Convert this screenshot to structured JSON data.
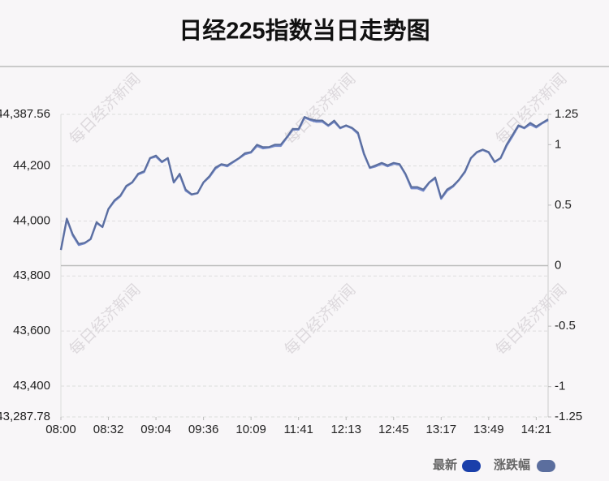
{
  "chart_data": {
    "type": "line",
    "title": "日经225指数当日走势图",
    "watermark": "每日经济新闻",
    "categories": [
      "08:00",
      null,
      null,
      null,
      null,
      null,
      null,
      null,
      "08:32",
      null,
      null,
      null,
      null,
      null,
      null,
      null,
      "09:04",
      null,
      null,
      null,
      null,
      null,
      null,
      null,
      "09:36",
      null,
      null,
      null,
      null,
      null,
      null,
      null,
      "10:09",
      null,
      null,
      null,
      null,
      null,
      null,
      null,
      "11:41",
      null,
      null,
      null,
      null,
      null,
      null,
      null,
      "12:13",
      null,
      null,
      null,
      null,
      null,
      null,
      null,
      "12:45",
      null,
      null,
      null,
      null,
      null,
      null,
      null,
      "13:17",
      null,
      null,
      null,
      null,
      null,
      null,
      null,
      "13:49",
      null,
      null,
      null,
      null,
      null,
      null,
      null,
      "14:21",
      null,
      null
    ],
    "series": [
      {
        "name": "最新",
        "color": "#1a3faa",
        "values": [
          43895,
          44007,
          43948,
          43913,
          43919,
          43934,
          43993,
          43978,
          44043,
          44072,
          44090,
          44125,
          44140,
          44169,
          44178,
          44228,
          44234,
          44214,
          44228,
          44140,
          44169,
          44110,
          44096,
          44101,
          44140,
          44160,
          44190,
          44205,
          44199,
          44214,
          44228,
          44243,
          44249,
          44273,
          44264,
          44267,
          44273,
          44273,
          44302,
          44332,
          44332,
          44376,
          44367,
          44361,
          44361,
          44346,
          44361,
          44337,
          44346,
          44337,
          44317,
          44243,
          44193,
          44199,
          44208,
          44199,
          44208,
          44205,
          44169,
          44119,
          44119,
          44110,
          44140,
          44155,
          44081,
          44110,
          44125,
          44149,
          44178,
          44228,
          44249,
          44258,
          44249,
          44214,
          44228,
          44273,
          44308,
          44346,
          44337,
          44352,
          44340,
          44355,
          44367
        ]
      },
      {
        "name": "涨跌幅",
        "color": "#5b6e9e",
        "axis": "y2",
        "values": [
          0.13,
          0.39,
          0.26,
          0.18,
          0.19,
          0.22,
          0.36,
          0.32,
          0.47,
          0.54,
          0.58,
          0.66,
          0.69,
          0.76,
          0.78,
          0.89,
          0.91,
          0.86,
          0.89,
          0.69,
          0.76,
          0.63,
          0.59,
          0.6,
          0.69,
          0.74,
          0.81,
          0.84,
          0.83,
          0.86,
          0.89,
          0.93,
          0.94,
          1.0,
          0.98,
          0.98,
          1.0,
          1.0,
          1.06,
          1.13,
          1.13,
          1.23,
          1.21,
          1.2,
          1.2,
          1.16,
          1.2,
          1.14,
          1.16,
          1.14,
          1.1,
          0.93,
          0.81,
          0.83,
          0.85,
          0.83,
          0.85,
          0.84,
          0.76,
          0.65,
          0.65,
          0.63,
          0.69,
          0.73,
          0.56,
          0.63,
          0.66,
          0.71,
          0.78,
          0.89,
          0.94,
          0.96,
          0.94,
          0.86,
          0.89,
          1.0,
          1.08,
          1.16,
          1.14,
          1.18,
          1.15,
          1.18,
          1.21
        ]
      }
    ],
    "ylim": [
      43287.78,
      44387.56
    ],
    "yticks": [
      {
        "value": 43287.78,
        "label": "43,287.78"
      },
      {
        "value": 43400,
        "label": "43,400"
      },
      {
        "value": 43600,
        "label": "43,600"
      },
      {
        "value": 43800,
        "label": "43,800"
      },
      {
        "value": 44000,
        "label": "44,000"
      },
      {
        "value": 44200,
        "label": "44,200"
      },
      {
        "value": 44387.56,
        "label": "44,387.56"
      }
    ],
    "y2lim": [
      -1.25,
      1.25
    ],
    "y2ticks": [
      -1.25,
      -1,
      -0.5,
      0,
      0.5,
      1,
      1.25
    ],
    "grid": true
  }
}
